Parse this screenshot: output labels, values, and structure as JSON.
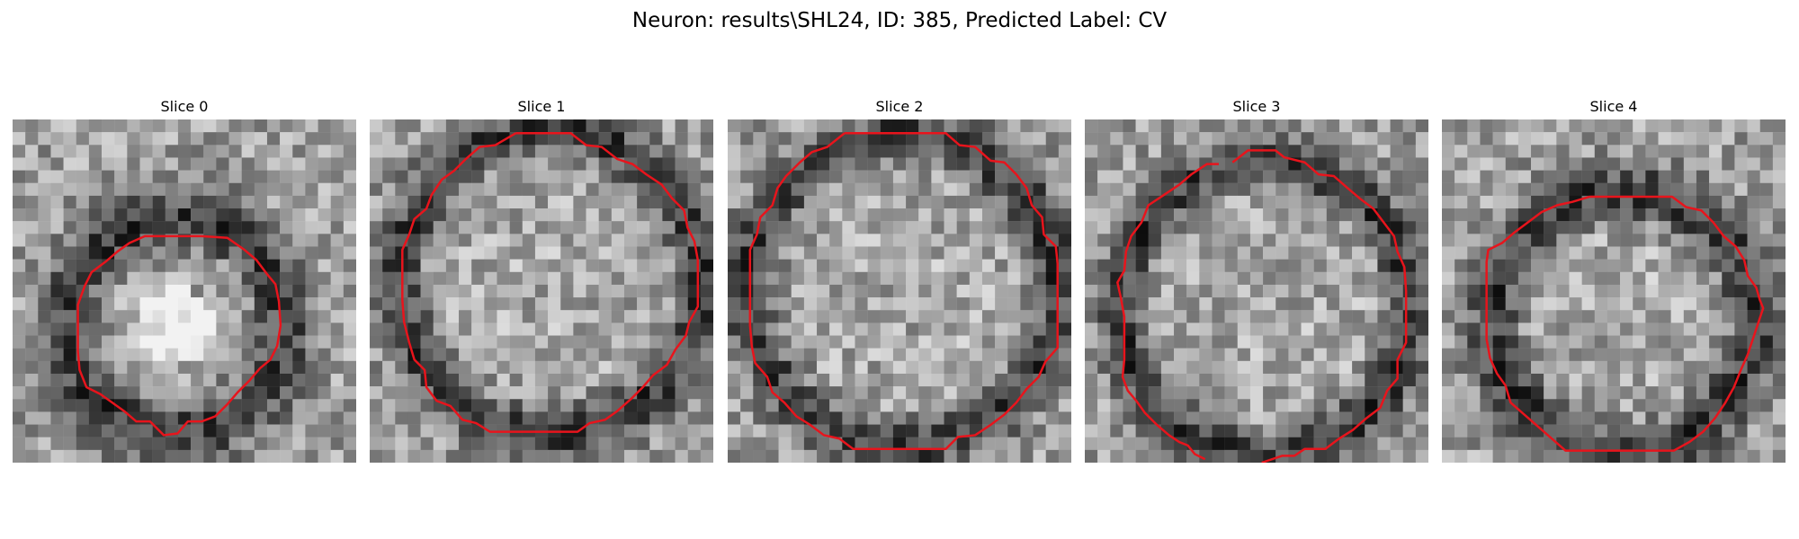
{
  "figure": {
    "title": "Neuron: results\\SHL24, ID: 385, Predicted Label: CV",
    "contour_color": "#e8141c"
  },
  "slices": [
    {
      "title": "Slice 0",
      "contour": [
        [
          11,
          6.8
        ],
        [
          12.5,
          6.9
        ],
        [
          13.5,
          7.6
        ],
        [
          14.2,
          8.2
        ],
        [
          14.8,
          9
        ],
        [
          15.3,
          9.6
        ],
        [
          15.5,
          10.6
        ],
        [
          15.6,
          12
        ],
        [
          15.4,
          13.2
        ],
        [
          15,
          14
        ],
        [
          14.4,
          14.5
        ],
        [
          13.8,
          15.2
        ],
        [
          13.1,
          15.9
        ],
        [
          12.5,
          16.6
        ],
        [
          11.8,
          17.3
        ],
        [
          11,
          17.6
        ],
        [
          10.2,
          17.6
        ],
        [
          9.6,
          18.3
        ],
        [
          8.8,
          18.4
        ],
        [
          8,
          17.6
        ],
        [
          7.2,
          17.6
        ],
        [
          6.5,
          17
        ],
        [
          5.8,
          16.5
        ],
        [
          5.1,
          16
        ],
        [
          4.3,
          15.6
        ],
        [
          3.9,
          14.6
        ],
        [
          3.8,
          13.5
        ],
        [
          3.8,
          12
        ],
        [
          3.8,
          10.8
        ],
        [
          4.2,
          9.7
        ],
        [
          4.6,
          8.9
        ],
        [
          5.4,
          8.3
        ],
        [
          6.1,
          7.7
        ],
        [
          6.8,
          7.2
        ],
        [
          7.7,
          6.8
        ],
        [
          9,
          6.8
        ]
      ]
    },
    {
      "title": "Slice 1",
      "contour": [
        [
          8.5,
          0.8
        ],
        [
          11.7,
          0.8
        ],
        [
          12.6,
          1.5
        ],
        [
          13.5,
          1.6
        ],
        [
          14.4,
          2.3
        ],
        [
          15.3,
          2.6
        ],
        [
          16.1,
          3.2
        ],
        [
          17,
          3.8
        ],
        [
          17.6,
          4.6
        ],
        [
          18.3,
          5.3
        ],
        [
          18.5,
          6.3
        ],
        [
          18.9,
          7.1
        ],
        [
          19.1,
          8.2
        ],
        [
          19.1,
          9.6
        ],
        [
          19.1,
          10.9
        ],
        [
          18.6,
          11.8
        ],
        [
          18.4,
          12.6
        ],
        [
          17.8,
          13.4
        ],
        [
          17.3,
          14.3
        ],
        [
          16.5,
          14.9
        ],
        [
          15.9,
          15.6
        ],
        [
          15.2,
          16.3
        ],
        [
          14.4,
          17
        ],
        [
          13.7,
          17.5
        ],
        [
          12.8,
          17.7
        ],
        [
          12.1,
          18.2
        ],
        [
          11,
          18.2
        ],
        [
          9.5,
          18.2
        ],
        [
          8,
          18.2
        ],
        [
          7,
          18.2
        ],
        [
          6.2,
          17.7
        ],
        [
          5.4,
          17.5
        ],
        [
          4.7,
          16.7
        ],
        [
          3.9,
          16.4
        ],
        [
          3.3,
          15.6
        ],
        [
          3.2,
          14.6
        ],
        [
          2.6,
          14
        ],
        [
          2.3,
          13
        ],
        [
          2,
          11.8
        ],
        [
          1.9,
          10.5
        ],
        [
          1.9,
          9
        ],
        [
          1.9,
          7.6
        ],
        [
          2.3,
          6.7
        ],
        [
          2.6,
          5.8
        ],
        [
          3.3,
          5.2
        ],
        [
          3.6,
          4.4
        ],
        [
          4.2,
          3.5
        ],
        [
          4.9,
          3
        ],
        [
          5.6,
          2.3
        ],
        [
          6.4,
          1.6
        ],
        [
          7.3,
          1.5
        ]
      ]
    },
    {
      "title": "Slice 2",
      "contour": [
        [
          6.8,
          0.8
        ],
        [
          12.7,
          0.8
        ],
        [
          13.5,
          1.5
        ],
        [
          14.4,
          1.6
        ],
        [
          15.3,
          2.4
        ],
        [
          16.1,
          2.5
        ],
        [
          16.8,
          3.2
        ],
        [
          17.4,
          4
        ],
        [
          17.7,
          5
        ],
        [
          18.3,
          5.7
        ],
        [
          18.4,
          6.7
        ],
        [
          19.1,
          7.4
        ],
        [
          19.2,
          8.4
        ],
        [
          19.2,
          10
        ],
        [
          19.2,
          11.8
        ],
        [
          19.2,
          13.3
        ],
        [
          18.5,
          14.1
        ],
        [
          18.1,
          15
        ],
        [
          17.4,
          15.7
        ],
        [
          16.8,
          16.5
        ],
        [
          16.1,
          17.2
        ],
        [
          15.3,
          17.8
        ],
        [
          14.4,
          18.4
        ],
        [
          13.4,
          18.5
        ],
        [
          12.7,
          19.2
        ],
        [
          11.5,
          19.2
        ],
        [
          10,
          19.2
        ],
        [
          8.5,
          19.2
        ],
        [
          7.3,
          19.2
        ],
        [
          6.5,
          18.6
        ],
        [
          5.6,
          18.4
        ],
        [
          4.8,
          17.8
        ],
        [
          4,
          17.3
        ],
        [
          3.3,
          16.5
        ],
        [
          2.6,
          15.9
        ],
        [
          2.3,
          15
        ],
        [
          1.6,
          14.2
        ],
        [
          1.4,
          13.2
        ],
        [
          1.3,
          12
        ],
        [
          1.3,
          10.5
        ],
        [
          1.3,
          9
        ],
        [
          1.3,
          7.6
        ],
        [
          1.7,
          6.7
        ],
        [
          1.9,
          5.7
        ],
        [
          2.6,
          5
        ],
        [
          2.9,
          4
        ],
        [
          3.4,
          3.3
        ],
        [
          4.2,
          2.5
        ],
        [
          4.9,
          1.9
        ],
        [
          5.8,
          1.6
        ]
      ]
    },
    {
      "title": "Slice 3",
      "contour": [
        [
          8.6,
          2.5
        ],
        [
          9.5,
          1.8
        ],
        [
          10.3,
          1.8
        ],
        [
          11.1,
          1.8
        ],
        [
          11.6,
          2.2
        ],
        [
          12.8,
          2.5
        ],
        [
          13.6,
          3.2
        ],
        [
          14.5,
          3.3
        ],
        [
          15.3,
          4
        ],
        [
          16,
          4.6
        ],
        [
          16.8,
          5.2
        ],
        [
          17.4,
          6
        ],
        [
          18,
          6.8
        ],
        [
          18.2,
          7.7
        ],
        [
          18.6,
          8.6
        ],
        [
          18.7,
          10
        ],
        [
          18.7,
          11.5
        ],
        [
          18.7,
          13
        ],
        [
          18.2,
          14
        ],
        [
          18.2,
          15.1
        ],
        [
          17.6,
          15.8
        ],
        [
          17.2,
          16.8
        ],
        [
          16.4,
          17.4
        ],
        [
          15.6,
          18.1
        ],
        [
          14.8,
          18.6
        ],
        [
          14,
          19.2
        ],
        [
          12.8,
          19.2
        ],
        [
          12.2,
          19.6
        ],
        [
          11.5,
          19.6
        ],
        [
          10.3,
          20
        ]
      ],
      "contour2": [
        [
          7,
          19.8
        ],
        [
          6.4,
          19.5
        ],
        [
          6,
          19
        ],
        [
          5.5,
          18.8
        ],
        [
          4.9,
          18.4
        ],
        [
          4.2,
          17.8
        ],
        [
          3.5,
          17.1
        ],
        [
          3,
          16.4
        ],
        [
          2.5,
          15.8
        ],
        [
          2.2,
          15
        ],
        [
          2.3,
          14
        ],
        [
          2.3,
          13
        ],
        [
          2.3,
          11.5
        ],
        [
          2.1,
          10.4
        ],
        [
          1.9,
          9.5
        ],
        [
          2.3,
          8.8
        ],
        [
          2.4,
          7.7
        ],
        [
          2.7,
          6.8
        ],
        [
          3.3,
          6
        ],
        [
          3.7,
          5
        ],
        [
          4.6,
          4.4
        ],
        [
          5.5,
          3.8
        ],
        [
          6.2,
          3.2
        ],
        [
          7.1,
          2.6
        ],
        [
          7.8,
          2.6
        ]
      ]
    },
    {
      "title": "Slice 4",
      "contour": [
        [
          8.6,
          4.5
        ],
        [
          13.4,
          4.5
        ],
        [
          14.2,
          5.1
        ],
        [
          15.1,
          5.3
        ],
        [
          15.8,
          6
        ],
        [
          16.4,
          6.8
        ],
        [
          17.1,
          7.4
        ],
        [
          17.6,
          8.2
        ],
        [
          17.8,
          9.1
        ],
        [
          18.3,
          9.8
        ],
        [
          18.5,
          10.5
        ],
        [
          18.7,
          11
        ],
        [
          18.4,
          11.9
        ],
        [
          18.1,
          12.8
        ],
        [
          17.8,
          13.7
        ],
        [
          17.4,
          14.6
        ],
        [
          17,
          15.6
        ],
        [
          16.5,
          16.5
        ],
        [
          15.9,
          17.4
        ],
        [
          15.2,
          18.2
        ],
        [
          14.4,
          18.8
        ],
        [
          13.5,
          19.3
        ],
        [
          12.2,
          19.3
        ],
        [
          11,
          19.3
        ],
        [
          9.5,
          19.3
        ],
        [
          8.2,
          19.3
        ],
        [
          7.2,
          19.3
        ],
        [
          6.4,
          18.6
        ],
        [
          5.6,
          17.9
        ],
        [
          4.8,
          17.2
        ],
        [
          4,
          16.5
        ],
        [
          3.7,
          15.5
        ],
        [
          3.2,
          14.8
        ],
        [
          2.8,
          13.9
        ],
        [
          2.6,
          12.8
        ],
        [
          2.6,
          11.2
        ],
        [
          2.6,
          9.6
        ],
        [
          2.6,
          8.3
        ],
        [
          2.7,
          7.6
        ],
        [
          3.5,
          7.2
        ],
        [
          4.2,
          6.6
        ],
        [
          5,
          6
        ],
        [
          5.8,
          5.4
        ],
        [
          6.7,
          5
        ],
        [
          7.6,
          4.8
        ]
      ]
    }
  ]
}
